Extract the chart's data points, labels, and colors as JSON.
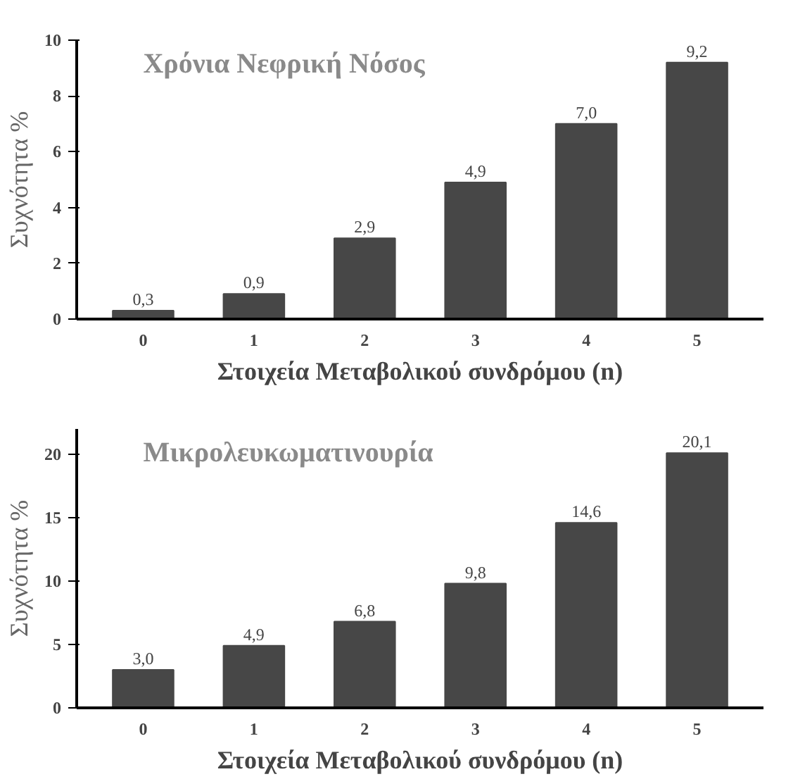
{
  "chart_data": [
    {
      "type": "bar",
      "title": "Χρόνια Νεφρική Νόσος",
      "xlabel": "Στοιχεία Μεταβολικού συνδρόμου (n)",
      "ylabel": "Συχνότητα %",
      "categories": [
        "0",
        "1",
        "2",
        "3",
        "4",
        "5"
      ],
      "values": [
        0.3,
        0.9,
        2.9,
        4.9,
        7.0,
        9.2
      ],
      "value_labels": [
        "0,3",
        "0,9",
        "2,9",
        "4,9",
        "7,0",
        "9,2"
      ],
      "color": "#474747",
      "ylim": [
        0,
        10
      ],
      "yticks": [
        0,
        2,
        4,
        6,
        8,
        10
      ],
      "grid": false
    },
    {
      "type": "bar",
      "title": "Μικρολευκωματινουρία",
      "xlabel": "Στοιχεία Μεταβολικού συνδρόμου (n)",
      "ylabel": "Συχνότητα %",
      "categories": [
        "0",
        "1",
        "2",
        "3",
        "4",
        "5"
      ],
      "values": [
        3.0,
        4.9,
        6.8,
        9.8,
        14.6,
        20.1
      ],
      "value_labels": [
        "3,0",
        "4,9",
        "6,8",
        "9,8",
        "14,6",
        "20,1"
      ],
      "color": "#474747",
      "ylim": [
        0,
        22
      ],
      "yticks": [
        0,
        5,
        10,
        15,
        20
      ],
      "grid": false
    }
  ]
}
